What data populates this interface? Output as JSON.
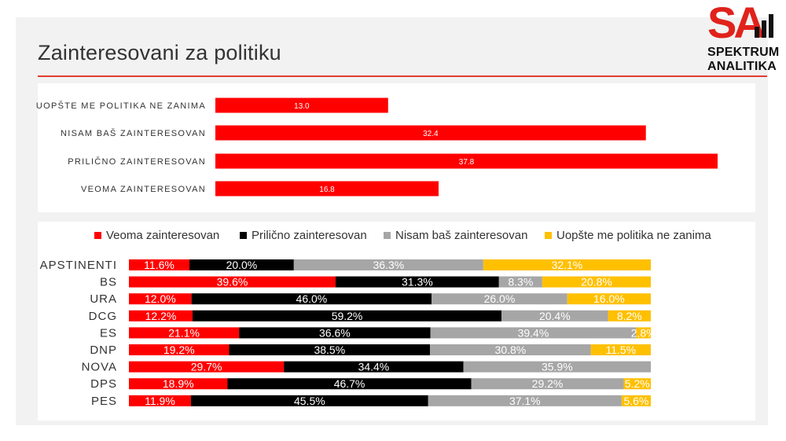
{
  "title": "Zainteresovani za politiku",
  "logo": {
    "mark": "SA",
    "line1": "SPEKTRUM",
    "line2": "ANALITIKA"
  },
  "colors": {
    "red": "#ff0000",
    "black": "#000000",
    "grey": "#a6a6a6",
    "yellow": "#ffc000",
    "accent": "#e03c31"
  },
  "chart_data": [
    {
      "type": "bar",
      "orientation": "horizontal",
      "categories": [
        "UOPŠTE ME POLITIKA NE ZANIMA",
        "NISAM BAŠ ZAINTERESOVAN",
        "PRILIČNO ZAINTERESOVAN",
        "VEOMA ZAINTERESOVAN"
      ],
      "values": [
        13.0,
        32.4,
        37.8,
        16.8
      ],
      "value_labels": [
        "13.0",
        "32.4",
        "37.8",
        "16.8"
      ],
      "xlim": [
        0,
        37.8
      ],
      "color": "#ff0000",
      "grid": false
    },
    {
      "type": "bar",
      "orientation": "horizontal",
      "stacked": "percent",
      "legend_position": "top",
      "categories": [
        "APSTINENTI",
        "BS",
        "URA",
        "DCG",
        "ES",
        "DNP",
        "NOVA",
        "DPS",
        "PES"
      ],
      "series": [
        {
          "name": "Veoma zainteresovan",
          "color": "#ff0000",
          "values": [
            11.6,
            39.6,
            12.0,
            12.2,
            21.1,
            19.2,
            29.7,
            18.9,
            11.9
          ],
          "labels": [
            "11.6%",
            "39.6%",
            "12.0%",
            "12.2%",
            "21.1%",
            "19.2%",
            "29.7%",
            "18.9%",
            "11.9%"
          ]
        },
        {
          "name": "Prilično zainteresovan",
          "color": "#000000",
          "values": [
            20.0,
            31.3,
            46.0,
            59.2,
            36.6,
            38.5,
            34.4,
            46.7,
            45.5
          ],
          "labels": [
            "20.0%",
            "31.3%",
            "46.0%",
            "59.2%",
            "36.6%",
            "38.5%",
            "34.4%",
            "46.7%",
            "45.5%"
          ]
        },
        {
          "name": "Nisam baš zainteresovan",
          "color": "#a6a6a6",
          "values": [
            36.3,
            8.3,
            26.0,
            20.4,
            39.4,
            30.8,
            35.9,
            29.2,
            37.1
          ],
          "labels": [
            "36.3%",
            "8.3%",
            "26.0%",
            "20.4%",
            "39.4%",
            "30.8%",
            "35.9%",
            "29.2%",
            "37.1%"
          ]
        },
        {
          "name": "Uopšte me politika ne zanima",
          "color": "#ffc000",
          "values": [
            32.1,
            20.8,
            16.0,
            8.2,
            2.8,
            11.5,
            0,
            5.2,
            5.6
          ],
          "labels": [
            "32.1%",
            "20.8%",
            "16.0%",
            "8.2%",
            "2.8%",
            "11.5%",
            "",
            "5.2%",
            "5.6%"
          ]
        }
      ],
      "grid": false
    }
  ]
}
